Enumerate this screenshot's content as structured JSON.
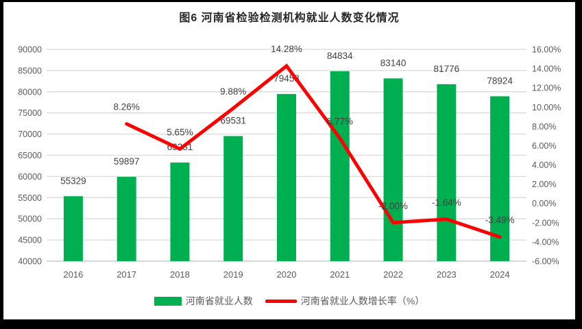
{
  "chart_data": {
    "type": "combo-bar-line",
    "title": "图6  河南省检验检测机构就业人数变化情况",
    "categories": [
      "2016",
      "2017",
      "2018",
      "2019",
      "2020",
      "2021",
      "2022",
      "2023",
      "2024"
    ],
    "series": [
      {
        "name": "河南省就业人数",
        "type": "bar",
        "axis": "left",
        "color": "#00B050",
        "values": [
          55329,
          59897,
          63281,
          69531,
          79458,
          84834,
          83140,
          81776,
          78924
        ],
        "labels": [
          "55329",
          "59897",
          "63281",
          "69531",
          "79458",
          "84834",
          "83140",
          "81776",
          "78924"
        ]
      },
      {
        "name": "河南省就业人数增长率（%）",
        "type": "line",
        "axis": "right",
        "color": "#FF0000",
        "values": [
          null,
          8.26,
          5.65,
          9.88,
          14.28,
          6.77,
          -2.0,
          -1.64,
          -3.49
        ],
        "labels": [
          null,
          "8.26%",
          "5.65%",
          "9.88%",
          "14.28%",
          "6.77%",
          "-2.00%",
          "-1.64%",
          "-3.49%"
        ]
      }
    ],
    "left_axis": {
      "min": 40000,
      "max": 90000,
      "step": 5000,
      "tick_labels": [
        "90000",
        "85000",
        "80000",
        "75000",
        "70000",
        "65000",
        "60000",
        "55000",
        "50000",
        "45000",
        "40000"
      ]
    },
    "right_axis": {
      "min": -6,
      "max": 16,
      "step": 2,
      "tick_labels": [
        "16.00%",
        "14.00%",
        "12.00%",
        "10.00%",
        "8.00%",
        "6.00%",
        "4.00%",
        "2.00%",
        "0.00%",
        "-2.00%",
        "-4.00%",
        "-6.00%"
      ]
    },
    "legend": [
      {
        "label": "河南省就业人数",
        "swatch": "bar",
        "color": "#00B050"
      },
      {
        "label": "河南省就业人数增长率（%）",
        "swatch": "line",
        "color": "#FF0000"
      }
    ],
    "grid": true,
    "legend_position": "bottom",
    "colors": {
      "bar": "#00B050",
      "line": "#FF0000",
      "gridline": "#D9D9D9",
      "baseline": "#BFBFBF",
      "axis_text": "#595959",
      "data_label": "#404040",
      "title": "#262626"
    }
  }
}
